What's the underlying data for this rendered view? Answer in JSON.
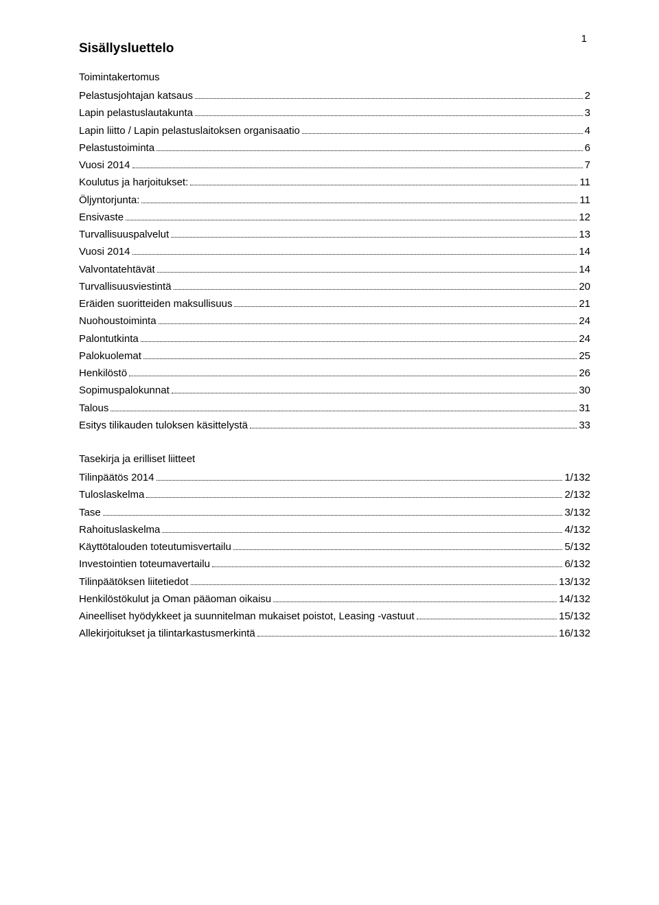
{
  "page_number": "1",
  "title": "Sisällysluettelo",
  "section1_label": "Toimintakertomus",
  "section1_entries": [
    {
      "text": "Pelastusjohtajan katsaus",
      "page": "2"
    },
    {
      "text": "Lapin pelastuslautakunta",
      "page": "3"
    },
    {
      "text": "Lapin liitto / Lapin pelastuslaitoksen organisaatio",
      "page": "4"
    },
    {
      "text": "Pelastustoiminta",
      "page": "6"
    },
    {
      "text": "Vuosi 2014",
      "page": "7"
    },
    {
      "text": "Koulutus ja harjoitukset:",
      "page": "11"
    },
    {
      "text": "Öljyntorjunta:",
      "page": "11"
    },
    {
      "text": "Ensivaste",
      "page": "12"
    },
    {
      "text": "Turvallisuuspalvelut",
      "page": "13"
    },
    {
      "text": "Vuosi 2014",
      "page": "14"
    },
    {
      "text": "Valvontatehtävät",
      "page": "14"
    },
    {
      "text": "Turvallisuusviestintä",
      "page": "20"
    },
    {
      "text": "Eräiden suoritteiden maksullisuus",
      "page": "21"
    },
    {
      "text": "Nuohoustoiminta",
      "page": "24"
    },
    {
      "text": "Palontutkinta",
      "page": "24"
    },
    {
      "text": "Palokuolemat",
      "page": "25"
    },
    {
      "text": "Henkilöstö",
      "page": "26"
    },
    {
      "text": "Sopimuspalokunnat",
      "page": "30"
    },
    {
      "text": "Talous",
      "page": "31"
    },
    {
      "text": "Esitys tilikauden tuloksen käsittelystä",
      "page": "33"
    }
  ],
  "section2_label": "Tasekirja ja erilliset liitteet",
  "section2_entries": [
    {
      "text": "Tilinpäätös 2014",
      "page": "1/132"
    },
    {
      "text": "Tuloslaskelma",
      "page": "2/132"
    },
    {
      "text": "Tase",
      "page": "3/132"
    },
    {
      "text": "Rahoituslaskelma",
      "page": "4/132"
    },
    {
      "text": "Käyttötalouden toteutumisvertailu",
      "page": "5/132"
    },
    {
      "text": "Investointien toteumavertailu",
      "page": "6/132"
    },
    {
      "text": "Tilinpäätöksen liitetiedot",
      "page": "13/132"
    },
    {
      "text": "Henkilöstökulut ja Oman pääoman oikaisu",
      "page": "14/132"
    },
    {
      "text": "Aineelliset hyödykkeet ja suunnitelman mukaiset poistot, Leasing -vastuut",
      "page": "15/132"
    },
    {
      "text": "Allekirjoitukset ja tilintarkastusmerkintä",
      "page": "16/132"
    }
  ]
}
